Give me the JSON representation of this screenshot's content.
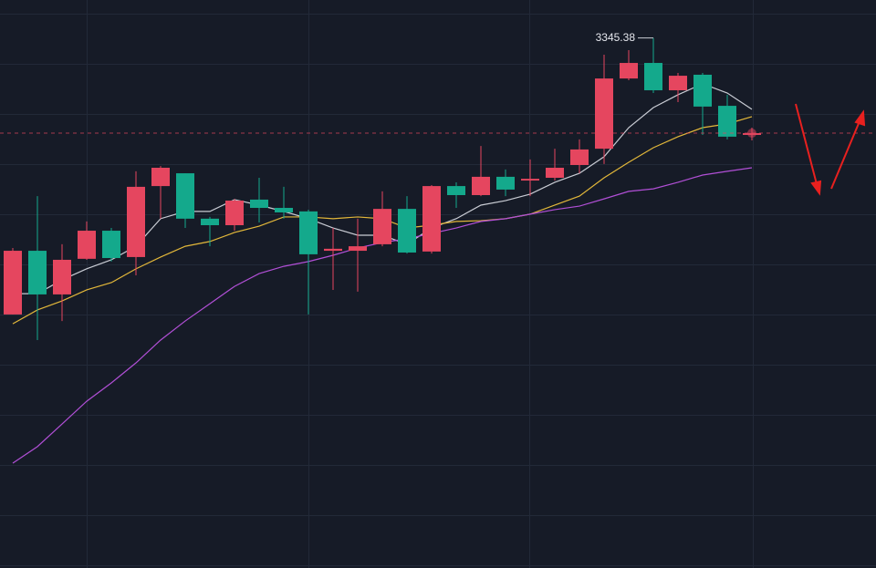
{
  "chart_data": {
    "type": "candlestick",
    "open": [
      3235.1,
      3260.5,
      3243.1,
      3257.3,
      3268.5,
      3258.0,
      3286.3,
      3291.4,
      3273.3,
      3270.7,
      3280.9,
      3277.6,
      3276.2,
      3260.5,
      3260.5,
      3263.1,
      3277.2,
      3260.2,
      3286.3,
      3282.7,
      3290.0,
      3288.5,
      3289.6,
      3294.7,
      3301.2,
      3329.2,
      3335.4,
      3324.5,
      3330.7,
      3318.3,
      3306.7
    ],
    "high": [
      3261.6,
      3282.3,
      3263.1,
      3272.2,
      3269.6,
      3292.2,
      3294.3,
      3291.4,
      3274.0,
      3281.2,
      3289.6,
      3286.0,
      3276.9,
      3269.6,
      3273.3,
      3284.2,
      3282.3,
      3286.7,
      3287.8,
      3302.3,
      3292.9,
      3296.9,
      3301.2,
      3304.9,
      3338.7,
      3340.5,
      3345.38,
      3331.4,
      3331.4,
      3322.7,
      3309.6
    ],
    "low": [
      3235.1,
      3224.9,
      3232.5,
      3256.9,
      3256.2,
      3250.7,
      3273.3,
      3269.6,
      3262.3,
      3268.5,
      3271.8,
      3273.3,
      3235.1,
      3244.9,
      3244.2,
      3262.3,
      3259.4,
      3259.4,
      3277.6,
      3282.3,
      3282.3,
      3282.3,
      3288.5,
      3291.4,
      3295.1,
      3328.5,
      3323.4,
      3319.8,
      3306.7,
      3304.9,
      3304.5
    ],
    "close": [
      3260.5,
      3243.1,
      3256.9,
      3268.5,
      3257.6,
      3286.0,
      3293.6,
      3273.3,
      3270.7,
      3280.5,
      3277.6,
      3275.8,
      3259.1,
      3261.3,
      3262.3,
      3277.2,
      3259.8,
      3286.3,
      3282.7,
      3290.0,
      3284.9,
      3289.2,
      3293.6,
      3300.9,
      3329.2,
      3335.4,
      3324.5,
      3330.3,
      3318.0,
      3306.0,
      3307.4
    ],
    "up_color": "#e5465f",
    "down_color": "#14a98c",
    "lines": [
      {
        "color": "#c9ccd4",
        "values": [
          3243.4,
          3243.4,
          3248.9,
          3253.3,
          3256.9,
          3262.3,
          3273.3,
          3276.2,
          3276.2,
          3280.9,
          3278.7,
          3276.2,
          3273.3,
          3269.6,
          3266.7,
          3266.7,
          3263.1,
          3269.6,
          3273.3,
          3278.7,
          3280.5,
          3283.1,
          3287.8,
          3291.4,
          3298.0,
          3309.6,
          3317.6,
          3322.7,
          3327.1,
          3323.4,
          3316.9
        ]
      },
      {
        "color": "#e2b73a",
        "values": [
          3231.4,
          3236.9,
          3240.5,
          3244.9,
          3247.8,
          3253.3,
          3258.0,
          3262.3,
          3264.2,
          3267.8,
          3270.3,
          3274.0,
          3274.0,
          3273.3,
          3274.0,
          3273.3,
          3269.6,
          3270.7,
          3272.2,
          3272.5,
          3273.3,
          3275.1,
          3278.7,
          3282.3,
          3289.6,
          3295.8,
          3301.6,
          3306.0,
          3309.6,
          3311.1,
          3314.0
        ]
      },
      {
        "color": "#b14fd6",
        "values": [
          3175.8,
          3182.4,
          3191.4,
          3200.5,
          3207.8,
          3215.8,
          3224.9,
          3232.5,
          3239.4,
          3246.3,
          3251.4,
          3254.3,
          3256.2,
          3258.7,
          3261.6,
          3263.8,
          3265.3,
          3267.4,
          3269.6,
          3272.2,
          3273.3,
          3275.1,
          3276.9,
          3278.3,
          3281.2,
          3284.2,
          3285.2,
          3287.8,
          3290.7,
          3292.2,
          3293.6
        ]
      }
    ],
    "ylim": [
      3134,
      3360.5
    ],
    "yticks": [
      3355,
      3335,
      3315,
      3295,
      3275,
      3255,
      3235,
      3215,
      3195,
      3175,
      3155,
      3135
    ],
    "grid": true
  }
}
